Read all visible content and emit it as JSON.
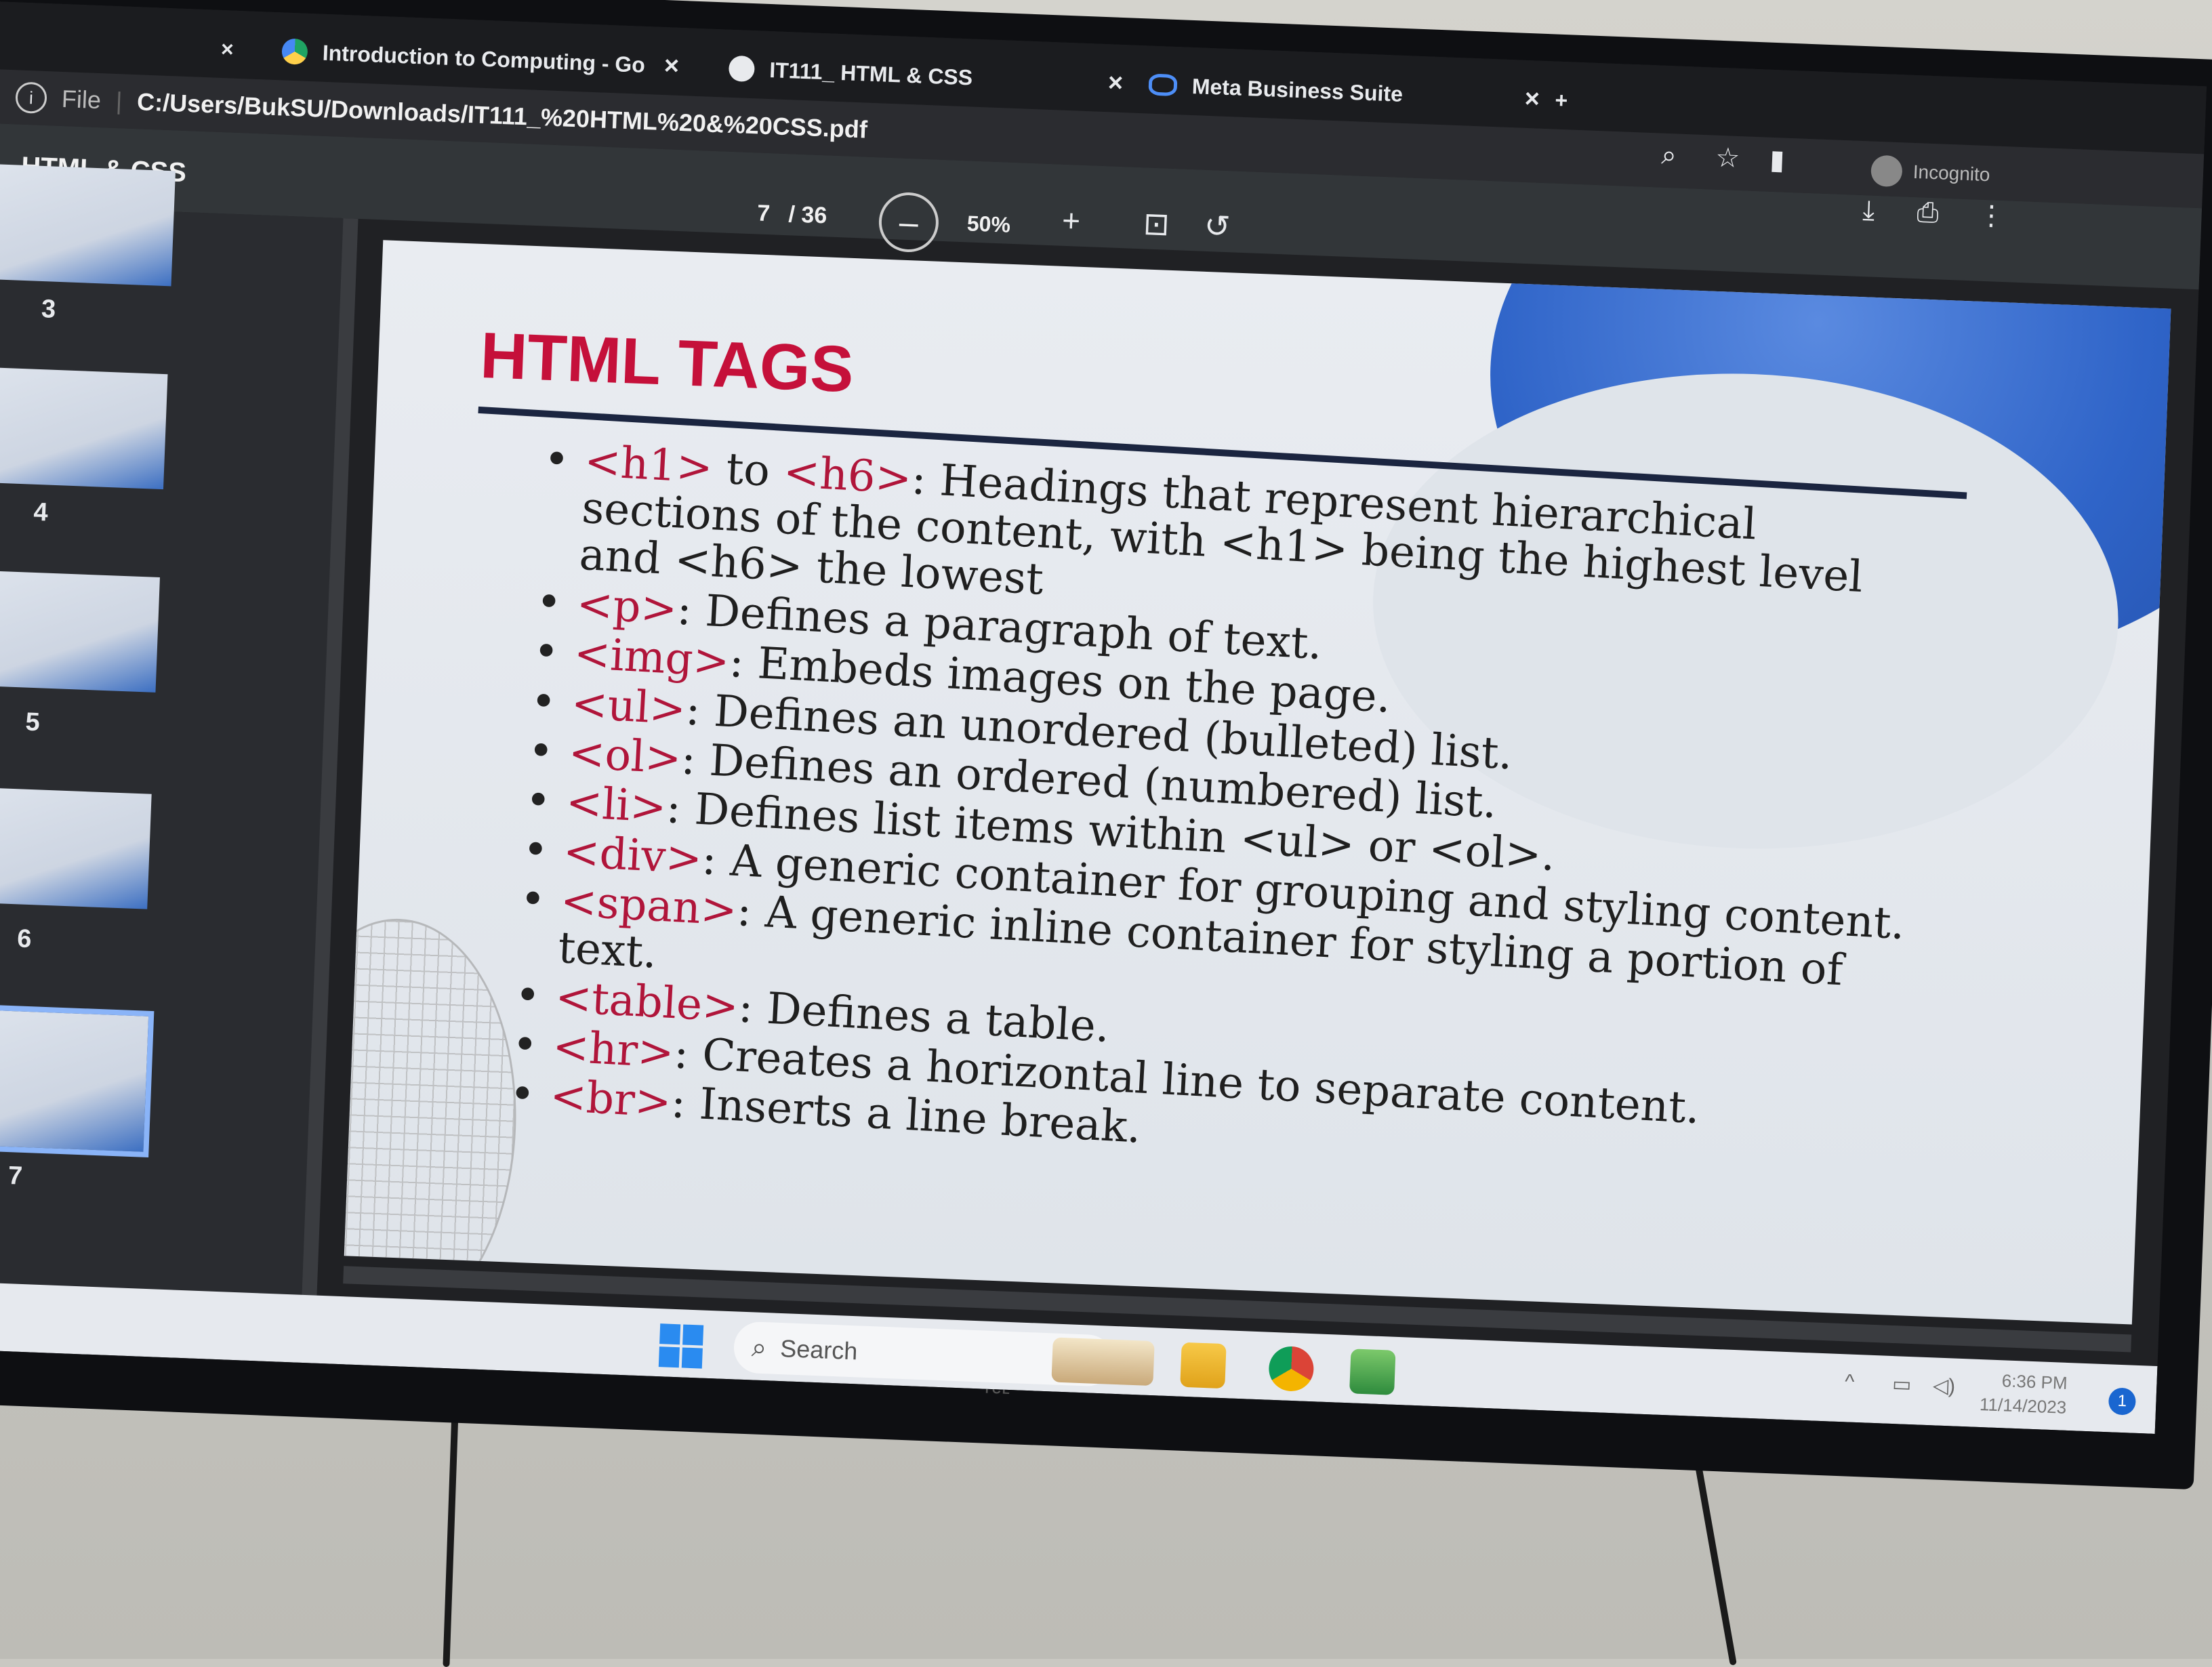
{
  "tabs": [
    {
      "label": "Introduction to Computing - Go",
      "icon": "drive-icon"
    },
    {
      "label": "IT111_ HTML & CSS",
      "icon": "pdf-icon"
    },
    {
      "label": "Meta Business Suite",
      "icon": "meta-icon"
    }
  ],
  "close_glyph": "×",
  "new_tab_glyph": "+",
  "address": {
    "scheme": "File",
    "url": "C:/Users/BukSU/Downloads/IT111_%20HTML%20&%20CSS.pdf"
  },
  "pdf_toolbar": {
    "doc_title": "_HTML & CSS",
    "current_page": "7",
    "total_pages": "/ 36",
    "zoom": "50%",
    "zoom_out": "–",
    "zoom_in": "+",
    "profile": "Incognito"
  },
  "thumbnails": [
    "3",
    "4",
    "5",
    "6",
    "7"
  ],
  "slide": {
    "title": "HTML TAGS",
    "items": [
      {
        "tag": "<h1>",
        "mid": " to ",
        "tag2": "<h6>",
        "text": ": Headings that represent hierarchical sections of the content, with <h1> being the highest level and <h6> the lowest"
      },
      {
        "tag": "<p>",
        "text": ": Defines a paragraph of text."
      },
      {
        "tag": "<img>",
        "text": ": Embeds images on the page."
      },
      {
        "tag": "<ul>",
        "text": ": Defines an unordered (bulleted) list."
      },
      {
        "tag": "<ol>",
        "text": ": Defines an ordered (numbered) list."
      },
      {
        "tag": "<li>",
        "text": ": Defines list items within <ul> or <ol>."
      },
      {
        "tag": "<div>",
        "text": ": A generic container for grouping and styling content."
      },
      {
        "tag": "<span>",
        "text": ": A generic inline container for styling a portion of text."
      },
      {
        "tag": "<table>",
        "text": ": Defines a table."
      },
      {
        "tag": "<hr>",
        "text": ": Creates a horizontal line to separate content."
      },
      {
        "tag": "<br>",
        "text": ": Inserts a line break."
      }
    ]
  },
  "taskbar": {
    "search_placeholder": "Search",
    "time": "6:36 PM",
    "date": "11/14/2023",
    "notifications": "1"
  },
  "tv_brand": "TCL",
  "colors": {
    "tag_red": "#b0153a",
    "title_red": "#c5103a",
    "accent_blue": "#2f64c8"
  }
}
